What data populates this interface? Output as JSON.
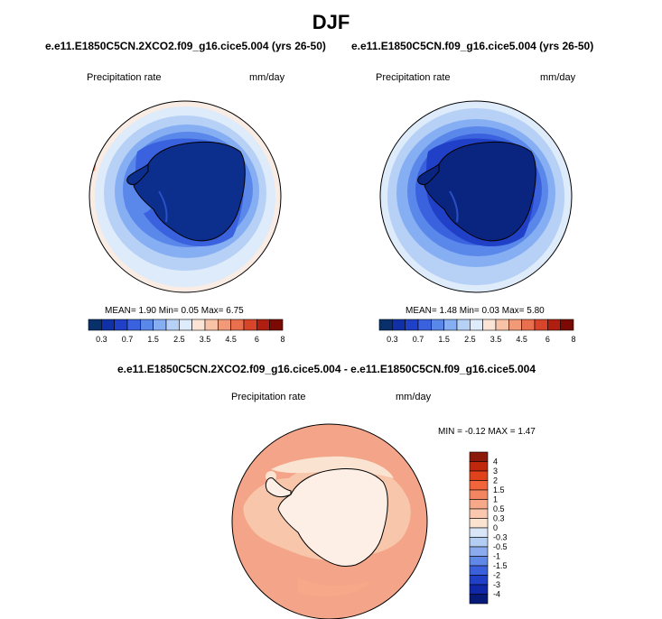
{
  "page": {
    "title": "DJF"
  },
  "chart_data": [
    {
      "type": "heatmap",
      "projection": "south-polar-stereographic",
      "title": "e.e11.E1850C5CN.2XCO2.f09_g16.cice5.004 (yrs 26-50)",
      "left_label": "Precipitation rate",
      "right_label": "mm/day",
      "stats": {
        "mean_label": "MEAN=",
        "mean": "1.90",
        "min_label": "Min=",
        "min": "0.05",
        "max_label": "Max=",
        "max": "6.75"
      },
      "colorbar": {
        "orientation": "horizontal",
        "ticks": [
          "0.3",
          "0.7",
          "1.5",
          "2.5",
          "3.5",
          "4.5",
          "6",
          "8"
        ],
        "colors": [
          "#08306b",
          "#1030a8",
          "#2040c8",
          "#3a62de",
          "#5a88ea",
          "#86aef2",
          "#b6d0f6",
          "#ddebfa",
          "#fbe4d6",
          "#f7c2a6",
          "#f29a78",
          "#e8704e",
          "#d8452a",
          "#b01e12",
          "#7a0a04"
        ]
      }
    },
    {
      "type": "heatmap",
      "projection": "south-polar-stereographic",
      "title": "e.e11.E1850C5CN.f09_g16.cice5.004 (yrs 26-50)",
      "left_label": "Precipitation rate",
      "right_label": "mm/day",
      "stats": {
        "mean_label": "MEAN=",
        "mean": "1.48",
        "min_label": "Min=",
        "min": "0.03",
        "max_label": "Max=",
        "max": "5.80"
      },
      "colorbar": {
        "orientation": "horizontal",
        "ticks": [
          "0.3",
          "0.7",
          "1.5",
          "2.5",
          "3.5",
          "4.5",
          "6",
          "8"
        ],
        "colors": [
          "#08306b",
          "#1030a8",
          "#2040c8",
          "#3a62de",
          "#5a88ea",
          "#86aef2",
          "#b6d0f6",
          "#ddebfa",
          "#fbe4d6",
          "#f7c2a6",
          "#f29a78",
          "#e8704e",
          "#d8452a",
          "#b01e12",
          "#7a0a04"
        ]
      }
    },
    {
      "type": "heatmap",
      "projection": "south-polar-stereographic",
      "title": "e.e11.E1850C5CN.2XCO2.f09_g16.cice5.004 - e.e11.E1850C5CN.f09_g16.cice5.004",
      "left_label": "Precipitation rate",
      "right_label": "mm/day",
      "stats": {
        "min_label": "MIN =",
        "min": "-0.12",
        "max_label": "MAX =",
        "max": "1.47"
      },
      "colorbar": {
        "orientation": "vertical",
        "ticks": [
          "4",
          "3",
          "2",
          "1.5",
          "1",
          "0.5",
          "0.3",
          "0",
          "-0.3",
          "-0.5",
          "-1",
          "-1.5",
          "-2",
          "-3",
          "-4"
        ],
        "colors": [
          "#8b1a0a",
          "#c0280e",
          "#e0431c",
          "#f2653a",
          "#f38660",
          "#f6a888",
          "#f9c8ae",
          "#fbe3d2",
          "#d8e6f7",
          "#b4cdf3",
          "#8aacee",
          "#6088e6",
          "#3a60dc",
          "#2040c8",
          "#1028a8",
          "#081a78"
        ]
      }
    }
  ]
}
